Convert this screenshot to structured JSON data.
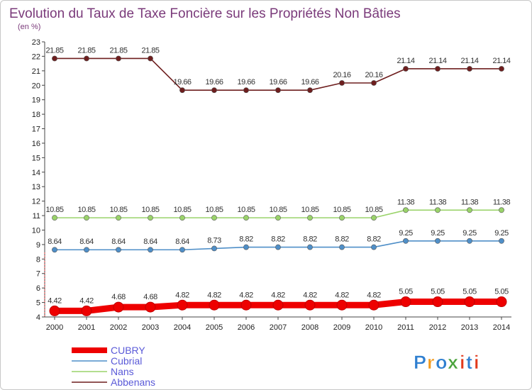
{
  "chart_data": {
    "type": "line",
    "title": "Evolution du Taux de Taxe Foncière sur les Propriétés Non Bâties",
    "ylabel": "(en %)",
    "xlabel": "",
    "ylim": [
      4,
      23
    ],
    "yticks": [
      4,
      5,
      6,
      7,
      8,
      9,
      10,
      11,
      12,
      13,
      14,
      15,
      16,
      17,
      18,
      19,
      20,
      21,
      22,
      23
    ],
    "categories": [
      "2000",
      "2001",
      "2002",
      "2003",
      "2004",
      "2005",
      "2006",
      "2007",
      "2008",
      "2009",
      "2010",
      "2011",
      "2012",
      "2013",
      "2014"
    ],
    "grid": false,
    "legend_position": "bottom-left",
    "series": [
      {
        "name": "Abbenans",
        "color": "#6e1e1e",
        "values": [
          21.85,
          21.85,
          21.85,
          21.85,
          19.66,
          19.66,
          19.66,
          19.66,
          19.66,
          20.16,
          20.16,
          21.14,
          21.14,
          21.14,
          21.14
        ],
        "labels": [
          "21.85",
          "21.85",
          "21.85",
          "21.85",
          "19.66",
          "19.66",
          "19.66",
          "19.66",
          "19.66",
          "20.16",
          "20.16",
          "21.14",
          "21.14",
          "21.14",
          "21.14"
        ]
      },
      {
        "name": "Nans",
        "color": "#9ad36a",
        "values": [
          10.85,
          10.85,
          10.85,
          10.85,
          10.85,
          10.85,
          10.85,
          10.85,
          10.85,
          10.85,
          10.85,
          11.38,
          11.38,
          11.38,
          11.38
        ],
        "labels": [
          "10.85",
          "10.85",
          "10.85",
          "10.85",
          "10.85",
          "10.85",
          "10.85",
          "10.85",
          "10.85",
          "10.85",
          "10.85",
          "11.38",
          "11.38",
          "11.38",
          "11.38"
        ]
      },
      {
        "name": "Cubrial",
        "color": "#4f8fc8",
        "values": [
          8.64,
          8.64,
          8.64,
          8.64,
          8.64,
          8.73,
          8.82,
          8.82,
          8.82,
          8.82,
          8.82,
          9.25,
          9.25,
          9.25,
          9.25
        ],
        "labels": [
          "8.64",
          "8.64",
          "8.64",
          "8.64",
          "8.64",
          "8.73",
          "8.82",
          "8.82",
          "8.82",
          "8.82",
          "8.82",
          "9.25",
          "9.25",
          "9.25",
          "9.25"
        ]
      },
      {
        "name": "CUBRY",
        "color": "#ee0000",
        "values": [
          4.42,
          4.42,
          4.68,
          4.68,
          4.82,
          4.82,
          4.82,
          4.82,
          4.82,
          4.82,
          4.82,
          5.05,
          5.05,
          5.05,
          5.05
        ],
        "labels": [
          "4.42",
          "4.42",
          "4.68",
          "4.68",
          "4.82",
          "4.82",
          "4.82",
          "4.82",
          "4.82",
          "4.82",
          "4.82",
          "5.05",
          "5.05",
          "5.05",
          "5.05"
        ]
      }
    ],
    "legend": [
      "CUBRY",
      "Cubrial",
      "Nans",
      "Abbenans"
    ]
  },
  "logo": {
    "text": "Proxiti",
    "letters": [
      "P",
      "r",
      "o",
      "x",
      "i",
      "t",
      "i"
    ],
    "colors": [
      "#2f7fd0",
      "#f29a1c",
      "#2f7fd0",
      "#4aa33c",
      "#e23a1c",
      "#2f7fd0",
      "#e23a1c"
    ]
  }
}
